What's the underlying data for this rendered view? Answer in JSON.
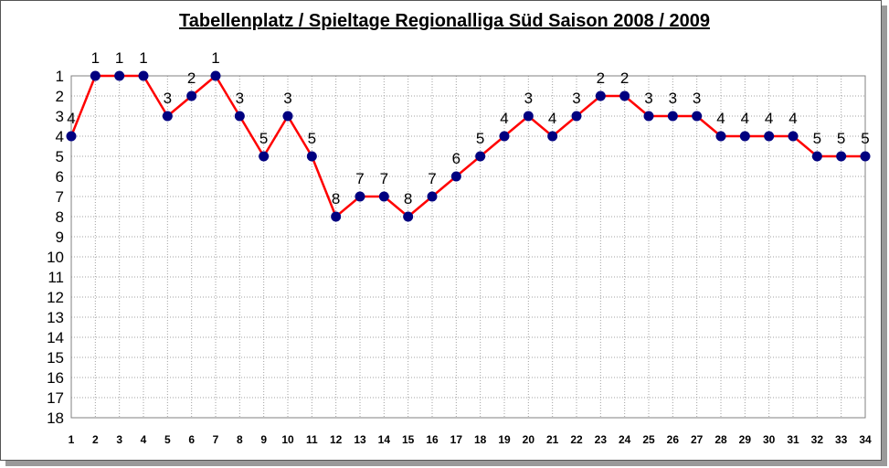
{
  "chart_data": {
    "type": "line",
    "title": "Tabellenplatz / Spieltage Regionalliga Süd Saison 2008 / 2009",
    "x": [
      1,
      2,
      3,
      4,
      5,
      6,
      7,
      8,
      9,
      10,
      11,
      12,
      13,
      14,
      15,
      16,
      17,
      18,
      19,
      20,
      21,
      22,
      23,
      24,
      25,
      26,
      27,
      28,
      29,
      30,
      31,
      32,
      33,
      34
    ],
    "series": [
      {
        "values": [
          4,
          1,
          1,
          1,
          3,
          2,
          1,
          3,
          5,
          3,
          5,
          8,
          7,
          7,
          8,
          7,
          6,
          5,
          4,
          3,
          4,
          3,
          2,
          2,
          3,
          3,
          3,
          4,
          4,
          4,
          4,
          5,
          5,
          5
        ]
      }
    ],
    "y_ticks": [
      1,
      2,
      3,
      4,
      5,
      6,
      7,
      8,
      9,
      10,
      11,
      12,
      13,
      14,
      15,
      16,
      17,
      18
    ],
    "ylim": [
      1,
      18
    ],
    "y_inverted": true,
    "grid": true,
    "data_labels": true,
    "colors": {
      "line": "#ff0000",
      "marker": "#000080",
      "grid": "#a0a0a0"
    }
  }
}
